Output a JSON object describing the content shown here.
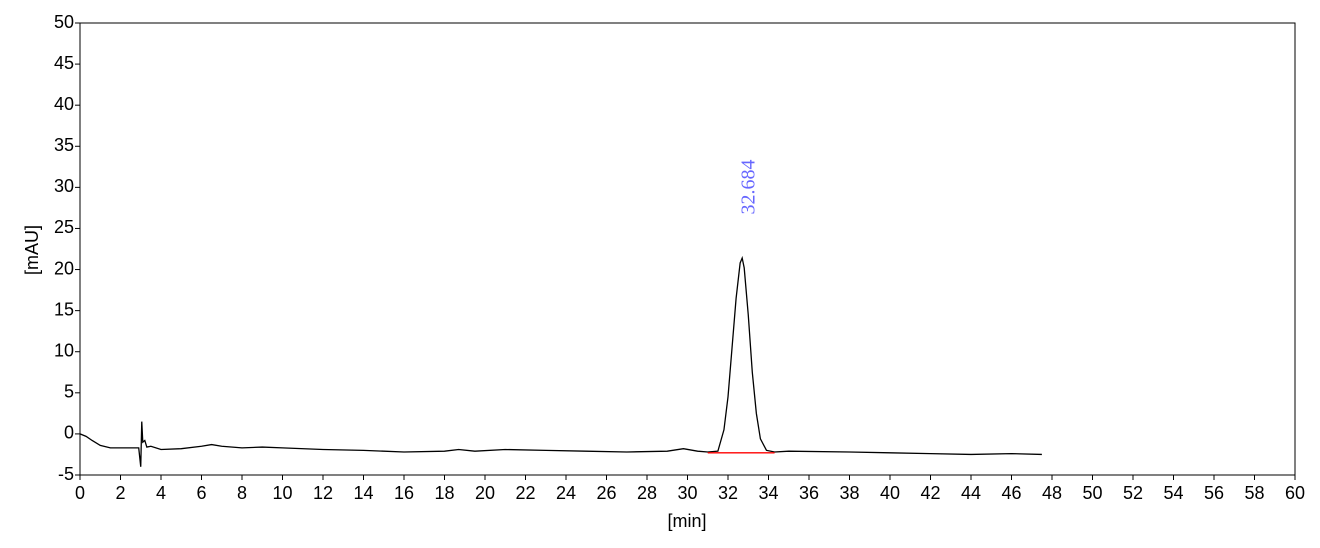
{
  "chart_data": {
    "type": "line",
    "x_label": "[min]",
    "y_label": "[mAU]",
    "xlim": [
      0,
      60
    ],
    "xticks": [
      0,
      2,
      4,
      6,
      8,
      10,
      12,
      14,
      16,
      18,
      20,
      22,
      24,
      26,
      28,
      30,
      32,
      34,
      36,
      38,
      40,
      42,
      44,
      46,
      48,
      50,
      52,
      54,
      56,
      58,
      60
    ],
    "ylim": [
      -5,
      50
    ],
    "yticks": [
      -5,
      0,
      5,
      10,
      15,
      20,
      25,
      30,
      35,
      40,
      45,
      50
    ],
    "grid": false,
    "series": [
      {
        "color": "#000000",
        "x": [
          0,
          0.3,
          0.6,
          1,
          1.5,
          2,
          2.5,
          2.9,
          3.0,
          3.05,
          3.1,
          3.2,
          3.3,
          3.5,
          4,
          5,
          6,
          6.5,
          7,
          8,
          9,
          10,
          12,
          14,
          16,
          18,
          18.7,
          19.5,
          21,
          23,
          25,
          27,
          29,
          29.8,
          30.5,
          31,
          31.5,
          31.8,
          32.0,
          32.2,
          32.4,
          32.6,
          32.7,
          32.8,
          33.0,
          33.2,
          33.4,
          33.6,
          33.9,
          34.3,
          35,
          38,
          40,
          42,
          44,
          46,
          47.5
        ],
        "values": [
          0,
          -0.3,
          -0.8,
          -1.4,
          -1.7,
          -1.7,
          -1.7,
          -1.7,
          -4.0,
          1.5,
          -1.0,
          -0.8,
          -1.6,
          -1.5,
          -1.9,
          -1.8,
          -1.5,
          -1.3,
          -1.5,
          -1.7,
          -1.6,
          -1.7,
          -1.9,
          -2.0,
          -2.2,
          -2.1,
          -1.9,
          -2.1,
          -1.9,
          -2.0,
          -2.1,
          -2.2,
          -2.1,
          -1.8,
          -2.1,
          -2.2,
          -2.1,
          0.5,
          4.5,
          10.5,
          16.5,
          20.8,
          21.4,
          20.2,
          14.5,
          7.5,
          2.5,
          -0.6,
          -2.0,
          -2.2,
          -2.1,
          -2.2,
          -2.3,
          -2.4,
          -2.5,
          -2.4,
          -2.5
        ]
      },
      {
        "color": "#ff0000",
        "x": [
          31,
          34.3
        ],
        "values": [
          -2.3,
          -2.3
        ]
      }
    ],
    "annotations": [
      {
        "x": 32.684,
        "label": "32.684",
        "color": "#6666ff"
      }
    ]
  }
}
